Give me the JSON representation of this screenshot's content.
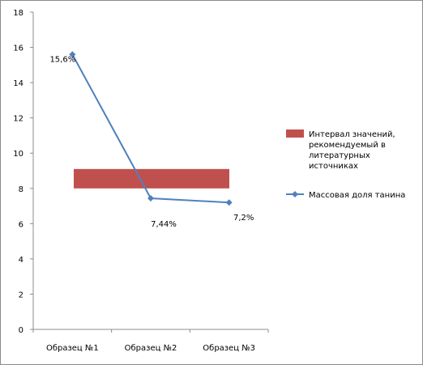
{
  "chart_data": {
    "type": "line",
    "categories": [
      "Образец №1",
      "Образец №2",
      "Образец №3"
    ],
    "series": [
      {
        "name": "Массовая доля танина",
        "values": [
          15.6,
          7.44,
          7.2
        ],
        "labels": [
          "15,6%",
          "7,44%",
          "7,2%"
        ],
        "color": "#4f81bd"
      }
    ],
    "band": {
      "name_lines": [
        "Интервал значений,",
        "рекомендуемый в",
        "литературных",
        "источниках"
      ],
      "y_from": 8.0,
      "y_to": 9.1,
      "color": "#c0504d"
    },
    "y_ticks": [
      "0",
      "2",
      "4",
      "6",
      "8",
      "10",
      "12",
      "14",
      "16",
      "18"
    ],
    "ylim": [
      0,
      18
    ],
    "legend_position": "right",
    "grid": false
  }
}
